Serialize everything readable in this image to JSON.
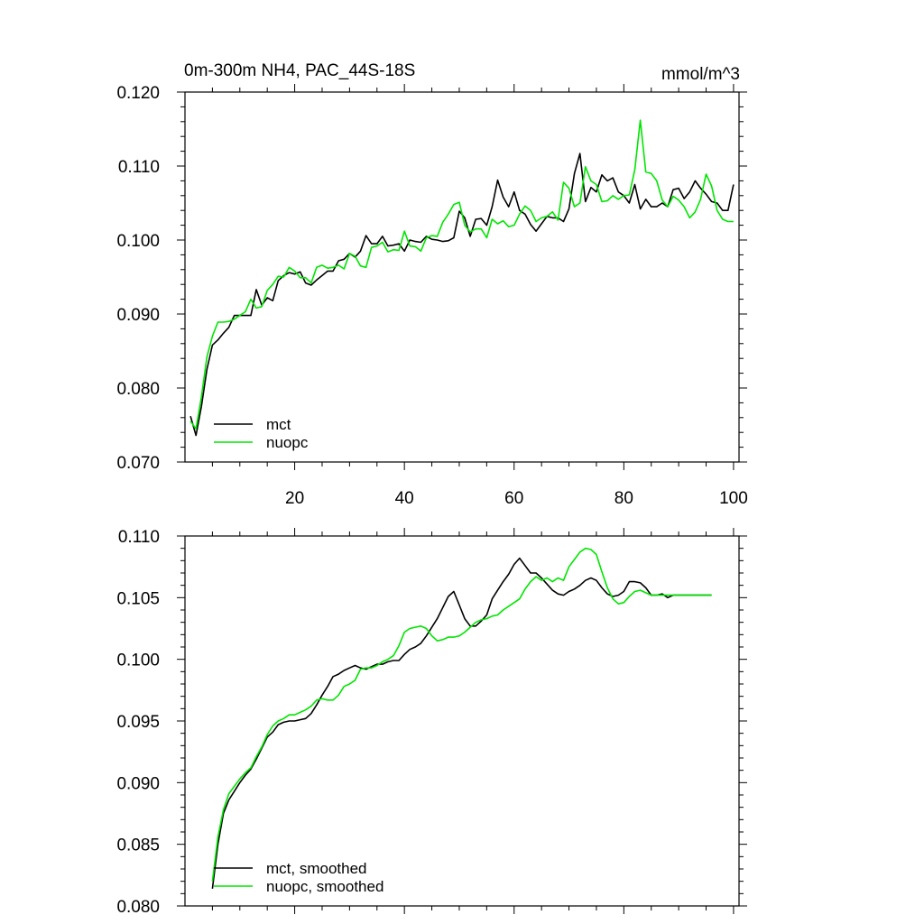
{
  "chart_data": [
    {
      "type": "line",
      "title": "0m-300m NH4, PAC_44S-18S",
      "units": "mmol/m^3",
      "xlim": [
        0,
        101
      ],
      "ylim": [
        0.07,
        0.12
      ],
      "x_ticks": [
        20,
        40,
        60,
        80,
        100
      ],
      "x_tick_labels": [
        "20",
        "40",
        "60",
        "80",
        "100"
      ],
      "y_ticks": [
        0.07,
        0.08,
        0.09,
        0.1,
        0.11,
        0.12
      ],
      "y_tick_labels": [
        "0.070",
        "0.080",
        "0.090",
        "0.100",
        "0.110",
        "0.120"
      ],
      "legend_position": "bottom-left",
      "series": [
        {
          "name": "mct",
          "color": "#000000",
          "x": [
            1,
            2,
            3,
            4,
            5,
            6,
            7,
            8,
            9,
            10,
            11,
            12,
            13,
            14,
            15,
            16,
            17,
            18,
            19,
            20,
            21,
            22,
            23,
            24,
            25,
            26,
            27,
            28,
            29,
            30,
            31,
            32,
            33,
            34,
            35,
            36,
            37,
            38,
            39,
            40,
            41,
            42,
            43,
            44,
            45,
            46,
            47,
            48,
            49,
            50,
            51,
            52,
            53,
            54,
            55,
            56,
            57,
            58,
            59,
            60,
            61,
            62,
            63,
            64,
            65,
            66,
            67,
            68,
            69,
            70,
            71,
            72,
            73,
            74,
            75,
            76,
            77,
            78,
            79,
            80,
            81,
            82,
            83,
            84,
            85,
            86,
            87,
            88,
            89,
            90,
            91,
            92,
            93,
            94,
            95,
            96,
            97,
            98,
            99,
            100
          ],
          "y": [
            0.0762,
            0.0736,
            0.0775,
            0.0825,
            0.0858,
            0.0865,
            0.0874,
            0.0882,
            0.0898,
            0.0898,
            0.0898,
            0.0898,
            0.0933,
            0.0912,
            0.0922,
            0.0918,
            0.0945,
            0.0952,
            0.0956,
            0.0954,
            0.0957,
            0.0942,
            0.0939,
            0.0946,
            0.0952,
            0.0958,
            0.0958,
            0.0972,
            0.0974,
            0.0982,
            0.0977,
            0.0985,
            0.1006,
            0.0995,
            0.0995,
            0.1005,
            0.0992,
            0.0993,
            0.0995,
            0.0985,
            0.1,
            0.0998,
            0.0997,
            0.1005,
            0.1001,
            0.1,
            0.0998,
            0.0999,
            0.1003,
            0.1039,
            0.103,
            0.1005,
            0.1028,
            0.1029,
            0.102,
            0.1045,
            0.1081,
            0.1058,
            0.1045,
            0.1065,
            0.104,
            0.1035,
            0.1021,
            0.1012,
            0.1022,
            0.1032,
            0.103,
            0.103,
            0.1025,
            0.1042,
            0.109,
            0.1117,
            0.1052,
            0.1071,
            0.1065,
            0.1088,
            0.108,
            0.1084,
            0.1065,
            0.106,
            0.105,
            0.1075,
            0.1042,
            0.1055,
            0.1045,
            0.1045,
            0.105,
            0.1045,
            0.1068,
            0.107,
            0.1056,
            0.1065,
            0.108,
            0.107,
            0.1062,
            0.1052,
            0.105,
            0.104,
            0.104,
            0.1075
          ]
        },
        {
          "name": "nuopc",
          "color": "#00e600",
          "x": [
            1,
            2,
            3,
            4,
            5,
            6,
            7,
            8,
            9,
            10,
            11,
            12,
            13,
            14,
            15,
            16,
            17,
            18,
            19,
            20,
            21,
            22,
            23,
            24,
            25,
            26,
            27,
            28,
            29,
            30,
            31,
            32,
            33,
            34,
            35,
            36,
            37,
            38,
            39,
            40,
            41,
            42,
            43,
            44,
            45,
            46,
            47,
            48,
            49,
            50,
            51,
            52,
            53,
            54,
            55,
            56,
            57,
            58,
            59,
            60,
            61,
            62,
            63,
            64,
            65,
            66,
            67,
            68,
            69,
            70,
            71,
            72,
            73,
            74,
            75,
            76,
            77,
            78,
            79,
            80,
            81,
            82,
            83,
            84,
            85,
            86,
            87,
            88,
            89,
            90,
            91,
            92,
            93,
            94,
            95,
            96,
            97,
            98,
            99,
            100
          ],
          "y": [
            0.0755,
            0.0745,
            0.0788,
            0.0842,
            0.087,
            0.0889,
            0.0889,
            0.089,
            0.0893,
            0.0898,
            0.0903,
            0.092,
            0.0908,
            0.091,
            0.0932,
            0.094,
            0.0951,
            0.095,
            0.0963,
            0.0958,
            0.0949,
            0.0949,
            0.0942,
            0.0963,
            0.0966,
            0.0962,
            0.0963,
            0.0966,
            0.0961,
            0.0982,
            0.0978,
            0.0965,
            0.0963,
            0.099,
            0.0992,
            0.0997,
            0.0984,
            0.0987,
            0.0986,
            0.1012,
            0.0992,
            0.0991,
            0.0985,
            0.1003,
            0.1006,
            0.1005,
            0.1024,
            0.1035,
            0.1048,
            0.1051,
            0.102,
            0.1011,
            0.1015,
            0.1015,
            0.1003,
            0.1028,
            0.1022,
            0.1026,
            0.1018,
            0.102,
            0.1035,
            0.1046,
            0.104,
            0.1025,
            0.103,
            0.1032,
            0.1038,
            0.1027,
            0.1078,
            0.107,
            0.1045,
            0.105,
            0.1099,
            0.108,
            0.1075,
            0.1052,
            0.1053,
            0.106,
            0.1055,
            0.106,
            0.1061,
            0.1095,
            0.1162,
            0.1092,
            0.109,
            0.108,
            0.1054,
            0.1045,
            0.1059,
            0.1054,
            0.1045,
            0.103,
            0.1038,
            0.1055,
            0.1089,
            0.1073,
            0.104,
            0.1028,
            0.1025,
            0.1025
          ]
        }
      ]
    },
    {
      "type": "line",
      "xlim": [
        0,
        101
      ],
      "ylim": [
        0.08,
        0.11
      ],
      "x_ticks": [
        20,
        40,
        60,
        80,
        100
      ],
      "y_ticks": [
        0.08,
        0.085,
        0.09,
        0.095,
        0.1,
        0.105,
        0.11
      ],
      "y_tick_labels": [
        "0.080",
        "0.085",
        "0.090",
        "0.095",
        "0.100",
        "0.105",
        "0.110"
      ],
      "legend_position": "bottom-left",
      "series": [
        {
          "name": "mct, smoothed",
          "color": "#000000",
          "x": [
            5,
            6,
            7,
            8,
            9,
            10,
            11,
            12,
            13,
            14,
            15,
            16,
            17,
            18,
            19,
            20,
            21,
            22,
            23,
            24,
            25,
            26,
            27,
            28,
            29,
            30,
            31,
            32,
            33,
            34,
            35,
            36,
            37,
            38,
            39,
            40,
            41,
            42,
            43,
            44,
            45,
            46,
            47,
            48,
            49,
            50,
            51,
            52,
            53,
            54,
            55,
            56,
            57,
            58,
            59,
            60,
            61,
            62,
            63,
            64,
            65,
            66,
            67,
            68,
            69,
            70,
            71,
            72,
            73,
            74,
            75,
            76,
            77,
            78,
            79,
            80,
            81,
            82,
            83,
            84,
            85,
            86,
            87,
            88,
            89,
            90,
            91,
            92,
            93,
            94,
            95,
            96
          ],
          "y": [
            0.0814,
            0.085,
            0.0875,
            0.0886,
            0.0893,
            0.09,
            0.0906,
            0.0911,
            0.0919,
            0.0928,
            0.0937,
            0.0941,
            0.0947,
            0.0949,
            0.095,
            0.095,
            0.0951,
            0.0952,
            0.0956,
            0.0963,
            0.0971,
            0.0978,
            0.0986,
            0.0988,
            0.0991,
            0.0993,
            0.0995,
            0.0993,
            0.0992,
            0.0994,
            0.0996,
            0.0996,
            0.0998,
            0.0999,
            0.0999,
            0.1004,
            0.1008,
            0.101,
            0.1013,
            0.1019,
            0.1026,
            0.1033,
            0.1042,
            0.1051,
            0.1055,
            0.1044,
            0.1033,
            0.1027,
            0.1027,
            0.1031,
            0.1036,
            0.1049,
            0.1056,
            0.1063,
            0.1069,
            0.1077,
            0.1082,
            0.1076,
            0.107,
            0.107,
            0.1066,
            0.1061,
            0.1056,
            0.1053,
            0.1052,
            0.1055,
            0.1057,
            0.106,
            0.1064,
            0.1066,
            0.1064,
            0.1058,
            0.1053,
            0.1051,
            0.1052,
            0.1055,
            0.1063,
            0.1063,
            0.1062,
            0.1058,
            0.1052,
            0.1052,
            0.1053,
            0.105,
            0.1052,
            0.1052,
            0.1052,
            0.1052,
            0.1052,
            0.1052,
            0.1052,
            0.1052
          ]
        },
        {
          "name": "nuopc, smoothed",
          "color": "#00e600",
          "x": [
            5,
            6,
            7,
            8,
            9,
            10,
            11,
            12,
            13,
            14,
            15,
            16,
            17,
            18,
            19,
            20,
            21,
            22,
            23,
            24,
            25,
            26,
            27,
            28,
            29,
            30,
            31,
            32,
            33,
            34,
            35,
            36,
            37,
            38,
            39,
            40,
            41,
            42,
            43,
            44,
            45,
            46,
            47,
            48,
            49,
            50,
            51,
            52,
            53,
            54,
            55,
            56,
            57,
            58,
            59,
            60,
            61,
            62,
            63,
            64,
            65,
            66,
            67,
            68,
            69,
            70,
            71,
            72,
            73,
            74,
            75,
            76,
            77,
            78,
            79,
            80,
            81,
            82,
            83,
            84,
            85,
            86,
            87,
            88,
            89,
            90,
            91,
            92,
            93,
            94,
            95,
            96
          ],
          "y": [
            0.082,
            0.0856,
            0.0878,
            0.0891,
            0.0897,
            0.0903,
            0.0908,
            0.0912,
            0.0921,
            0.0929,
            0.0939,
            0.0946,
            0.095,
            0.0952,
            0.0955,
            0.0955,
            0.0957,
            0.0959,
            0.0962,
            0.0967,
            0.0968,
            0.0967,
            0.0967,
            0.0971,
            0.0978,
            0.098,
            0.0983,
            0.0992,
            0.0993,
            0.0993,
            0.0995,
            0.0998,
            0.1,
            0.1003,
            0.1011,
            0.1022,
            0.1025,
            0.1026,
            0.1027,
            0.1025,
            0.1019,
            0.1015,
            0.1016,
            0.1018,
            0.1018,
            0.1019,
            0.1022,
            0.1026,
            0.103,
            0.1032,
            0.1033,
            0.1035,
            0.1036,
            0.104,
            0.1043,
            0.1046,
            0.1049,
            0.1057,
            0.1063,
            0.1067,
            0.1064,
            0.1066,
            0.1063,
            0.1066,
            0.1064,
            0.1075,
            0.1081,
            0.1087,
            0.109,
            0.1089,
            0.1085,
            0.1071,
            0.1058,
            0.1049,
            0.1045,
            0.1046,
            0.1051,
            0.1055,
            0.1056,
            0.1054,
            0.1052,
            0.1052,
            0.1052,
            0.1052,
            0.1052,
            0.1052,
            0.1052,
            0.1052,
            0.1052,
            0.1052,
            0.1052,
            0.1052
          ]
        }
      ]
    }
  ]
}
